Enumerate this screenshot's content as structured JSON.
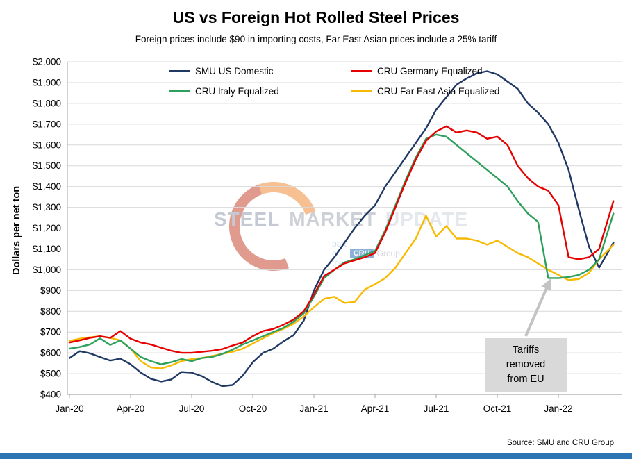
{
  "header": {
    "title": "US vs Foreign Hot Rolled Steel Prices",
    "subtitle": "Foreign prices include $90 in importing costs, Far East Asian prices include a 25% tariff"
  },
  "footer": {
    "source": "Source: SMU and CRU Group"
  },
  "annotation": {
    "text": "Tariffs removed from EU"
  },
  "watermark": {
    "words": [
      "STEEL",
      "MARKET",
      "UPDATE"
    ],
    "tagline_prefix": "part of the",
    "tagline_badge": "CRU",
    "tagline_suffix": "Group"
  },
  "colors": {
    "grid": "#d9d9d9",
    "axis": "#a6a6a6",
    "annotation_bg": "#d9d9d9",
    "arrow": "#c3c3c3",
    "bottom_bar": "#2e75b6"
  },
  "chart_data": {
    "type": "line",
    "title": "US vs Foreign Hot Rolled Steel Prices",
    "subtitle": "Foreign prices include $90 in importing costs, Far East Asian prices include a 25% tariff",
    "ylabel": "Dollars per net ton",
    "x_unit": "months since Jan-2020",
    "ylim": [
      400,
      2000
    ],
    "xlim": [
      0,
      27.1
    ],
    "grid": true,
    "legend_position": "top-inside",
    "y_ticks": [
      {
        "v": 400,
        "label": "$400"
      },
      {
        "v": 500,
        "label": "$500"
      },
      {
        "v": 600,
        "label": "$600"
      },
      {
        "v": 700,
        "label": "$700"
      },
      {
        "v": 800,
        "label": "$800"
      },
      {
        "v": 900,
        "label": "$900"
      },
      {
        "v": 1000,
        "label": "$1,000"
      },
      {
        "v": 1100,
        "label": "$1,100"
      },
      {
        "v": 1200,
        "label": "$1,200"
      },
      {
        "v": 1300,
        "label": "$1,300"
      },
      {
        "v": 1400,
        "label": "$1,400"
      },
      {
        "v": 1500,
        "label": "$1,500"
      },
      {
        "v": 1600,
        "label": "$1,600"
      },
      {
        "v": 1700,
        "label": "$1,700"
      },
      {
        "v": 1800,
        "label": "$1,800"
      },
      {
        "v": 1900,
        "label": "$1,900"
      },
      {
        "v": 2000,
        "label": "$2,000"
      }
    ],
    "x_ticks": [
      {
        "m": 0,
        "label": "Jan-20"
      },
      {
        "m": 3,
        "label": "Apr-20"
      },
      {
        "m": 6,
        "label": "Jul-20"
      },
      {
        "m": 9,
        "label": "Oct-20"
      },
      {
        "m": 12,
        "label": "Jan-21"
      },
      {
        "m": 15,
        "label": "Apr-21"
      },
      {
        "m": 18,
        "label": "Jul-21"
      },
      {
        "m": 21,
        "label": "Oct-21"
      },
      {
        "m": 24,
        "label": "Jan-22"
      }
    ],
    "x": [
      0,
      0.5,
      1,
      1.5,
      2,
      2.5,
      3,
      3.5,
      4,
      4.5,
      5,
      5.5,
      6,
      6.5,
      7,
      7.5,
      8,
      8.5,
      9,
      9.5,
      10,
      10.5,
      11,
      11.5,
      12,
      12.5,
      13,
      13.5,
      14,
      14.5,
      15,
      15.5,
      16,
      16.5,
      17,
      17.5,
      18,
      18.5,
      19,
      19.5,
      20,
      20.5,
      21,
      21.5,
      22,
      22.5,
      23,
      23.5,
      24,
      24.5,
      25,
      25.5,
      26,
      26.7
    ],
    "series": [
      {
        "name": "SMU US Domestic",
        "color": "#1f3864",
        "values": [
          575,
          608,
          598,
          580,
          563,
          572,
          545,
          505,
          475,
          462,
          472,
          508,
          505,
          488,
          460,
          440,
          445,
          490,
          555,
          600,
          620,
          655,
          685,
          755,
          900,
          1000,
          1060,
          1130,
          1200,
          1260,
          1310,
          1400,
          1470,
          1540,
          1610,
          1680,
          1770,
          1830,
          1890,
          1920,
          1945,
          1955,
          1940,
          1905,
          1870,
          1800,
          1755,
          1700,
          1610,
          1480,
          1290,
          1110,
          1010,
          1130
        ]
      },
      {
        "name": "CRU Germany Equalized",
        "color": "#e60000",
        "values": [
          650,
          660,
          672,
          680,
          672,
          705,
          668,
          650,
          640,
          625,
          610,
          600,
          600,
          605,
          610,
          618,
          635,
          650,
          680,
          705,
          715,
          735,
          760,
          800,
          880,
          970,
          1000,
          1030,
          1045,
          1060,
          1080,
          1180,
          1300,
          1420,
          1530,
          1620,
          1665,
          1690,
          1660,
          1670,
          1660,
          1630,
          1640,
          1600,
          1500,
          1440,
          1400,
          1380,
          1310,
          1060,
          1050,
          1060,
          1100,
          1330
        ]
      },
      {
        "name": "CRU Italy Equalized",
        "color": "#2ca05c",
        "values": [
          620,
          628,
          640,
          670,
          638,
          660,
          620,
          580,
          560,
          545,
          555,
          570,
          560,
          575,
          580,
          595,
          615,
          640,
          660,
          680,
          700,
          720,
          750,
          790,
          870,
          960,
          1000,
          1035,
          1050,
          1070,
          1090,
          1190,
          1310,
          1430,
          1540,
          1630,
          1650,
          1640,
          1600,
          1560,
          1520,
          1480,
          1440,
          1400,
          1330,
          1270,
          1230,
          960,
          960,
          965,
          975,
          1000,
          1050,
          1270
        ]
      },
      {
        "name": "CRU Far East Asia Equalized",
        "color": "#f7ba00",
        "values": [
          658,
          668,
          675,
          680,
          672,
          660,
          620,
          560,
          530,
          525,
          540,
          560,
          570,
          575,
          585,
          595,
          605,
          620,
          645,
          670,
          695,
          715,
          740,
          775,
          820,
          860,
          870,
          840,
          845,
          905,
          930,
          960,
          1010,
          1080,
          1150,
          1260,
          1160,
          1210,
          1150,
          1150,
          1140,
          1120,
          1140,
          1110,
          1080,
          1060,
          1030,
          1000,
          975,
          950,
          955,
          985,
          1050,
          1120
        ]
      }
    ]
  }
}
